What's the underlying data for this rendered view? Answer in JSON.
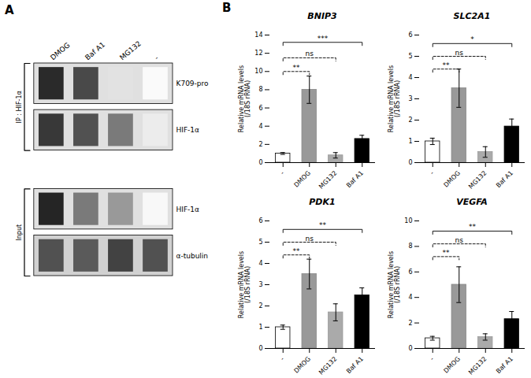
{
  "chart_data": [
    {
      "panel": "A",
      "type": "heatmap",
      "categories": [
        "DMOG",
        "Baf A1",
        "MG132",
        "-"
      ],
      "series": [
        {
          "name": "K709-pro",
          "group": "IP : HIF-1α",
          "values": [
            0.88,
            0.75,
            0.12,
            0.02
          ],
          "color": "#e0e0e0"
        },
        {
          "name": "HIF-1α",
          "group": "IP : HIF-1α",
          "values": [
            0.82,
            0.72,
            0.55,
            0.08
          ],
          "color": "#e0e0e0"
        },
        {
          "name": "HIF-1α",
          "group": "Input",
          "values": [
            0.9,
            0.55,
            0.42,
            0.03
          ],
          "color": "#e0e0e0"
        },
        {
          "name": "α-tubulin",
          "group": "Input",
          "values": [
            0.72,
            0.68,
            0.78,
            0.72
          ],
          "color": "#d1d1d1"
        }
      ]
    },
    {
      "panel": "B",
      "type": "bar",
      "title": "BNIP3",
      "categories": [
        "-",
        "DMOG",
        "MG132",
        "Baf A1"
      ],
      "values": [
        1.0,
        8.0,
        0.8,
        2.6
      ],
      "errors": [
        0.1,
        1.5,
        0.3,
        0.4
      ],
      "colors": [
        "white",
        "#999999",
        "#aaaaaa",
        "black"
      ],
      "edge_colors": [
        "black",
        "#888888",
        "#999999",
        "black"
      ],
      "ylim": [
        0,
        14
      ],
      "yticks": [
        0,
        2,
        4,
        6,
        8,
        10,
        12,
        14
      ],
      "ylabel": "Relative mRNA levels\n(/18S rRNA)",
      "significance": [
        {
          "x1": "-",
          "x2": "DMOG",
          "y": 10.0,
          "label": "**",
          "line_style": "dashed"
        },
        {
          "x1": "-",
          "x2": "MG132",
          "y": 11.5,
          "label": "ns",
          "line_style": "dashed"
        },
        {
          "x1": "-",
          "x2": "Baf A1",
          "y": 13.2,
          "label": "***",
          "line_style": "solid"
        }
      ]
    },
    {
      "type": "bar",
      "title": "SLC2A1",
      "categories": [
        "-",
        "DMOG",
        "MG132",
        "Baf A1"
      ],
      "values": [
        1.0,
        3.5,
        0.5,
        1.7
      ],
      "errors": [
        0.15,
        0.9,
        0.25,
        0.35
      ],
      "colors": [
        "white",
        "#999999",
        "#aaaaaa",
        "black"
      ],
      "edge_colors": [
        "black",
        "#888888",
        "#999999",
        "black"
      ],
      "ylim": [
        0,
        6
      ],
      "yticks": [
        0,
        1,
        2,
        3,
        4,
        5,
        6
      ],
      "ylabel": "Relative mRNA levels\n(/18S rRNA)",
      "significance": [
        {
          "x1": "-",
          "x2": "DMOG",
          "y": 4.4,
          "label": "**",
          "line_style": "dashed"
        },
        {
          "x1": "-",
          "x2": "MG132",
          "y": 5.0,
          "label": "ns",
          "line_style": "dashed"
        },
        {
          "x1": "-",
          "x2": "Baf A1",
          "y": 5.6,
          "label": "*",
          "line_style": "solid"
        }
      ]
    },
    {
      "type": "bar",
      "title": "PDK1",
      "categories": [
        "-",
        "DMOG",
        "MG132",
        "Baf A1"
      ],
      "values": [
        1.0,
        3.5,
        1.7,
        2.5
      ],
      "errors": [
        0.1,
        0.7,
        0.4,
        0.35
      ],
      "colors": [
        "white",
        "#999999",
        "#aaaaaa",
        "black"
      ],
      "edge_colors": [
        "black",
        "#888888",
        "#999999",
        "black"
      ],
      "ylim": [
        0,
        6
      ],
      "yticks": [
        0,
        1,
        2,
        3,
        4,
        5,
        6
      ],
      "ylabel": "Relative mRNA levels\n(/18S rRNA)",
      "significance": [
        {
          "x1": "-",
          "x2": "DMOG",
          "y": 4.4,
          "label": "**",
          "line_style": "dashed"
        },
        {
          "x1": "-",
          "x2": "MG132",
          "y": 5.0,
          "label": "ns",
          "line_style": "dashed"
        },
        {
          "x1": "-",
          "x2": "Baf A1",
          "y": 5.6,
          "label": "**",
          "line_style": "solid"
        }
      ]
    },
    {
      "type": "bar",
      "title": "VEGFA",
      "categories": [
        "-",
        "DMOG",
        "MG132",
        "Baf A1"
      ],
      "values": [
        0.8,
        5.0,
        0.9,
        2.3
      ],
      "errors": [
        0.15,
        1.4,
        0.25,
        0.6
      ],
      "colors": [
        "white",
        "#999999",
        "#aaaaaa",
        "black"
      ],
      "edge_colors": [
        "black",
        "#888888",
        "#999999",
        "black"
      ],
      "ylim": [
        0,
        10
      ],
      "yticks": [
        0,
        2,
        4,
        6,
        8,
        10
      ],
      "ylabel": "Relative mRNA levels\n(/18S rRNA)",
      "significance": [
        {
          "x1": "-",
          "x2": "DMOG",
          "y": 7.2,
          "label": "**",
          "line_style": "dashed"
        },
        {
          "x1": "-",
          "x2": "MG132",
          "y": 8.2,
          "label": "ns",
          "line_style": "dashed"
        },
        {
          "x1": "-",
          "x2": "Baf A1",
          "y": 9.2,
          "label": "**",
          "line_style": "solid"
        }
      ]
    }
  ]
}
